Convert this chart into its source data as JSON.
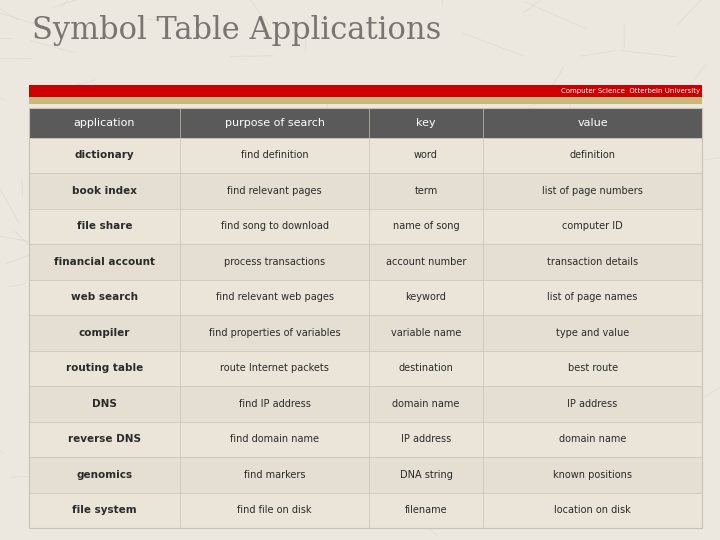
{
  "title": "Symbol Table Applications",
  "subtitle": "Computer Science  Otterbein University",
  "background_color": "#ede8df",
  "header_bg": "#5a5a5a",
  "header_text_color": "#ffffff",
  "red_bar_color": "#cc0000",
  "tan_bar_color": "#c8b87a",
  "columns": [
    "application",
    "purpose of search",
    "key",
    "value"
  ],
  "rows": [
    [
      "dictionary",
      "find definition",
      "word",
      "definition"
    ],
    [
      "book index",
      "find relevant pages",
      "term",
      "list of page numbers"
    ],
    [
      "file share",
      "find song to download",
      "name of song",
      "computer ID"
    ],
    [
      "financial account",
      "process transactions",
      "account number",
      "transaction details"
    ],
    [
      "web search",
      "find relevant web pages",
      "keyword",
      "list of page names"
    ],
    [
      "compiler",
      "find properties of variables",
      "variable name",
      "type and value"
    ],
    [
      "routing table",
      "route Internet packets",
      "destination",
      "best route"
    ],
    [
      "DNS",
      "find IP address",
      "domain name",
      "IP address"
    ],
    [
      "reverse DNS",
      "find domain name",
      "IP address",
      "domain name"
    ],
    [
      "genomics",
      "find markers",
      "DNA string",
      "known positions"
    ],
    [
      "file system",
      "find file on disk",
      "filename",
      "location on disk"
    ]
  ],
  "crackle_color": "#d0c8b8",
  "row_bg_even": "#eae5d8",
  "row_bg_odd": "#e4dfd2",
  "grid_color": "#c8c2b5",
  "text_color": "#2a2a2a"
}
